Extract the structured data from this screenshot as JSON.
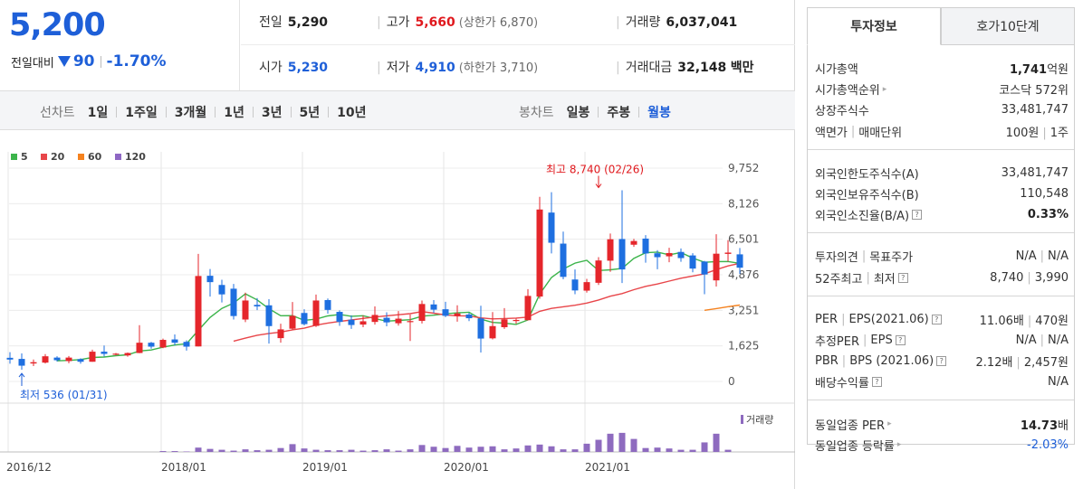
{
  "summary": {
    "price": "5,200",
    "change_label": "전일대비",
    "change_amount": "90",
    "change_pct": "-1.70%"
  },
  "quote": {
    "prev_label": "전일",
    "prev_value": "5,290",
    "high_label": "고가",
    "high_value": "5,660",
    "upper_label": "상한가",
    "upper_value": "6,870",
    "volume_label": "거래량",
    "volume_value": "6,037,041",
    "open_label": "시가",
    "open_value": "5,230",
    "low_label": "저가",
    "low_value": "4,910",
    "lower_label": "하한가",
    "lower_value": "3,710",
    "amount_label": "거래대금",
    "amount_value": "32,148",
    "amount_unit": "백만"
  },
  "period_bar": {
    "line_label": "선차트",
    "line_periods": [
      "1일",
      "1주일",
      "3개월",
      "1년",
      "3년",
      "5년",
      "10년"
    ],
    "candle_label": "봉차트",
    "candle_periods": [
      "일봉",
      "주봉",
      "월봉"
    ],
    "active_candle": "월봉"
  },
  "tabs": {
    "t1": "투자정보",
    "t2": "호가10단계"
  },
  "info": {
    "market_cap_label": "시가총액",
    "market_cap_value": "1,741",
    "market_cap_unit": "억원",
    "rank_label": "시가총액순위",
    "rank_value": "코스닥 572위",
    "shares_label": "상장주식수",
    "shares_value": "33,481,747",
    "par_label": "액면가",
    "unit_label": "매매단위",
    "par_value": "100원",
    "unit_value": "1주",
    "foreign_limit_label": "외국인한도주식수(A)",
    "foreign_limit_value": "33,481,747",
    "foreign_hold_label": "외국인보유주식수(B)",
    "foreign_hold_value": "110,548",
    "foreign_ratio_label": "외국인소진율(B/A)",
    "foreign_ratio_value": "0.33%",
    "opinion_label": "투자의견",
    "target_label": "목표주가",
    "opinion_value": "N/A",
    "target_value": "N/A",
    "high52_label": "52주최고",
    "low52_label": "최저",
    "high52_value": "8,740",
    "low52_value": "3,990",
    "per_label": "PER",
    "eps_label": "EPS(2021.06)",
    "per_value": "11.06배",
    "eps_value": "470원",
    "est_per_label": "추정PER",
    "est_eps_label": "EPS",
    "est_per_value": "N/A",
    "est_eps_value": "N/A",
    "pbr_label": "PBR",
    "bps_label": "BPS (2021.06)",
    "pbr_value": "2.12배",
    "bps_value": "2,457원",
    "div_label": "배당수익률",
    "div_value": "N/A",
    "ind_per_label": "동일업종 PER",
    "ind_per_value": "14.73",
    "ind_per_unit": "배",
    "ind_chg_label": "동일업종 등락률",
    "ind_chg_value": "-2.03%"
  },
  "chart_data": {
    "type": "candlestick",
    "interval": "monthly",
    "legend": [
      {
        "label": "5",
        "color": "#3cb44b"
      },
      {
        "label": "20",
        "color": "#e8464a"
      },
      {
        "label": "60",
        "color": "#f5821f"
      },
      {
        "label": "120",
        "color": "#8e67c4"
      }
    ],
    "y_ticks": [
      "9,752",
      "8,126",
      "6,501",
      "4,876",
      "3,251",
      "1,625",
      "0"
    ],
    "y_tick_values": [
      9752,
      8126,
      6501,
      4876,
      3251,
      1625,
      0
    ],
    "ylim": [
      0,
      9752
    ],
    "x_ticks": [
      {
        "label": "2016/12",
        "index": 0
      },
      {
        "label": "2018/01",
        "index": 13
      },
      {
        "label": "2019/01",
        "index": 25
      },
      {
        "label": "2020/01",
        "index": 37
      },
      {
        "label": "2021/01",
        "index": 49
      }
    ],
    "volume_label": "거래량",
    "max_annotation": {
      "text": "최고 8,740 (02/26)",
      "index": 50,
      "value": 8740
    },
    "min_annotation": {
      "text": "최저 536 (01/31)",
      "index": 1,
      "value": 536
    },
    "candles": [
      {
        "o": 1080,
        "h": 1340,
        "l": 810,
        "c": 1000
      },
      {
        "o": 1030,
        "h": 1280,
        "l": 536,
        "c": 720
      },
      {
        "o": 820,
        "h": 1000,
        "l": 700,
        "c": 880
      },
      {
        "o": 860,
        "h": 1250,
        "l": 820,
        "c": 1150
      },
      {
        "o": 1090,
        "h": 1150,
        "l": 910,
        "c": 970
      },
      {
        "o": 930,
        "h": 1160,
        "l": 830,
        "c": 1090
      },
      {
        "o": 1020,
        "h": 1060,
        "l": 810,
        "c": 900
      },
      {
        "o": 900,
        "h": 1450,
        "l": 900,
        "c": 1360
      },
      {
        "o": 1360,
        "h": 1640,
        "l": 1140,
        "c": 1260
      },
      {
        "o": 1260,
        "h": 1300,
        "l": 1190,
        "c": 1270
      },
      {
        "o": 1190,
        "h": 1320,
        "l": 1130,
        "c": 1300
      },
      {
        "o": 1300,
        "h": 2570,
        "l": 1290,
        "c": 1770
      },
      {
        "o": 1770,
        "h": 1810,
        "l": 1500,
        "c": 1590
      },
      {
        "o": 1550,
        "h": 1960,
        "l": 1520,
        "c": 1900
      },
      {
        "o": 1920,
        "h": 2150,
        "l": 1650,
        "c": 1770
      },
      {
        "o": 1810,
        "h": 1880,
        "l": 1410,
        "c": 1590
      },
      {
        "o": 1600,
        "h": 5830,
        "l": 1600,
        "c": 4820
      },
      {
        "o": 4830,
        "h": 5140,
        "l": 3880,
        "c": 4540
      },
      {
        "o": 4410,
        "h": 4650,
        "l": 3610,
        "c": 3980
      },
      {
        "o": 4240,
        "h": 4460,
        "l": 2830,
        "c": 2990
      },
      {
        "o": 2830,
        "h": 4060,
        "l": 2710,
        "c": 3700
      },
      {
        "o": 3500,
        "h": 3810,
        "l": 3260,
        "c": 3430
      },
      {
        "o": 3480,
        "h": 3760,
        "l": 1730,
        "c": 2530
      },
      {
        "o": 1980,
        "h": 2640,
        "l": 1770,
        "c": 2380
      },
      {
        "o": 2410,
        "h": 3630,
        "l": 2360,
        "c": 3000
      },
      {
        "o": 3130,
        "h": 3300,
        "l": 2560,
        "c": 2620
      },
      {
        "o": 2540,
        "h": 3970,
        "l": 2490,
        "c": 3700
      },
      {
        "o": 3720,
        "h": 3790,
        "l": 3100,
        "c": 3270
      },
      {
        "o": 3180,
        "h": 3250,
        "l": 2540,
        "c": 2720
      },
      {
        "o": 2820,
        "h": 3020,
        "l": 2400,
        "c": 2580
      },
      {
        "o": 2600,
        "h": 3010,
        "l": 2480,
        "c": 2750
      },
      {
        "o": 2720,
        "h": 3430,
        "l": 2600,
        "c": 3040
      },
      {
        "o": 2910,
        "h": 3160,
        "l": 2520,
        "c": 2700
      },
      {
        "o": 2660,
        "h": 3220,
        "l": 2550,
        "c": 2870
      },
      {
        "o": 2710,
        "h": 3060,
        "l": 1850,
        "c": 2760
      },
      {
        "o": 2770,
        "h": 3700,
        "l": 2650,
        "c": 3540
      },
      {
        "o": 3520,
        "h": 3720,
        "l": 3130,
        "c": 3280
      },
      {
        "o": 3300,
        "h": 3640,
        "l": 2940,
        "c": 3000
      },
      {
        "o": 2990,
        "h": 3480,
        "l": 2730,
        "c": 3110
      },
      {
        "o": 3060,
        "h": 3140,
        "l": 2760,
        "c": 2890
      },
      {
        "o": 2880,
        "h": 3460,
        "l": 1320,
        "c": 1960
      },
      {
        "o": 1970,
        "h": 3170,
        "l": 1920,
        "c": 2530
      },
      {
        "o": 2480,
        "h": 3350,
        "l": 2400,
        "c": 2840
      },
      {
        "o": 2780,
        "h": 2870,
        "l": 2640,
        "c": 2810
      },
      {
        "o": 2800,
        "h": 4220,
        "l": 2790,
        "c": 3910
      },
      {
        "o": 3880,
        "h": 8440,
        "l": 3780,
        "c": 7860
      },
      {
        "o": 7720,
        "h": 8650,
        "l": 5850,
        "c": 6340
      },
      {
        "o": 6300,
        "h": 6850,
        "l": 4670,
        "c": 4780
      },
      {
        "o": 4660,
        "h": 5120,
        "l": 3990,
        "c": 4160
      },
      {
        "o": 4150,
        "h": 4690,
        "l": 4060,
        "c": 4540
      },
      {
        "o": 4510,
        "h": 5680,
        "l": 4410,
        "c": 5530
      },
      {
        "o": 5520,
        "h": 6760,
        "l": 5010,
        "c": 6500
      },
      {
        "o": 6510,
        "h": 8740,
        "l": 4500,
        "c": 5120
      },
      {
        "o": 6250,
        "h": 6520,
        "l": 6150,
        "c": 6420
      },
      {
        "o": 6530,
        "h": 6690,
        "l": 5430,
        "c": 5850
      },
      {
        "o": 5860,
        "h": 6000,
        "l": 5130,
        "c": 5680
      },
      {
        "o": 5720,
        "h": 6110,
        "l": 5450,
        "c": 5870
      },
      {
        "o": 5920,
        "h": 6080,
        "l": 5470,
        "c": 5640
      },
      {
        "o": 5760,
        "h": 5860,
        "l": 4990,
        "c": 5160
      },
      {
        "o": 5480,
        "h": 5510,
        "l": 3990,
        "c": 4890
      },
      {
        "o": 4620,
        "h": 6730,
        "l": 4340,
        "c": 5840
      },
      {
        "o": 5830,
        "h": 6460,
        "l": 5480,
        "c": 5890
      },
      {
        "o": 5810,
        "h": 6100,
        "l": 4910,
        "c": 5200
      }
    ],
    "volumes": [
      0,
      0,
      0,
      0,
      0,
      0,
      0,
      0,
      0,
      0,
      0,
      0,
      0,
      0.02,
      0.02,
      0.01,
      0.1,
      0.07,
      0.05,
      0.03,
      0.06,
      0.04,
      0.05,
      0.09,
      0.18,
      0.08,
      0.05,
      0.04,
      0.04,
      0.05,
      0.03,
      0.04,
      0.06,
      0.03,
      0.06,
      0.16,
      0.12,
      0.09,
      0.14,
      0.1,
      0.12,
      0.13,
      0.06,
      0.08,
      0.15,
      0.17,
      0.13,
      0.06,
      0.06,
      0.19,
      0.28,
      0.42,
      0.44,
      0.3,
      0.09,
      0.1,
      0.08,
      0.05,
      0.05,
      0.22,
      0.42,
      0.05,
      0
    ]
  }
}
